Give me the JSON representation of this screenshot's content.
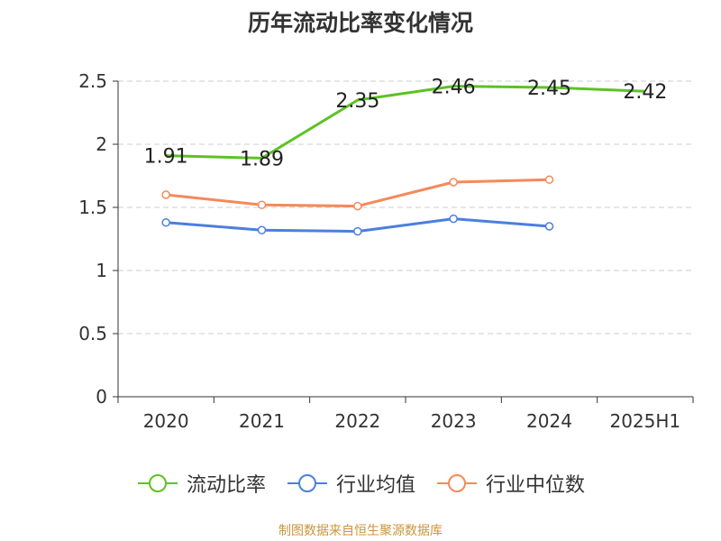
{
  "chart_data": {
    "type": "line",
    "title": "历年流动比率变化情况",
    "categories": [
      "2020",
      "2021",
      "2022",
      "2023",
      "2024",
      "2025H1"
    ],
    "ylim": [
      0,
      2.5
    ],
    "yticks": [
      "0",
      "0.5",
      "1",
      "1.5",
      "2",
      "2.5"
    ],
    "grid": true,
    "legend_position": "bottom",
    "series": [
      {
        "name": "流动比率",
        "color": "#5dc225",
        "values": [
          1.91,
          1.89,
          2.35,
          2.46,
          2.45,
          2.42
        ],
        "labels": [
          "1.91",
          "1.89",
          "2.35",
          "2.46",
          "2.45",
          "2.42"
        ],
        "show_labels": true,
        "show_markers": false
      },
      {
        "name": "行业均值",
        "color": "#4b7fde",
        "values": [
          1.38,
          1.32,
          1.31,
          1.41,
          1.35,
          null
        ],
        "show_labels": false,
        "show_markers": true
      },
      {
        "name": "行业中位数",
        "color": "#f5895a",
        "values": [
          1.6,
          1.52,
          1.51,
          1.7,
          1.72,
          null
        ],
        "show_labels": false,
        "show_markers": true
      }
    ]
  },
  "source": "制图数据来自恒生聚源数据库"
}
